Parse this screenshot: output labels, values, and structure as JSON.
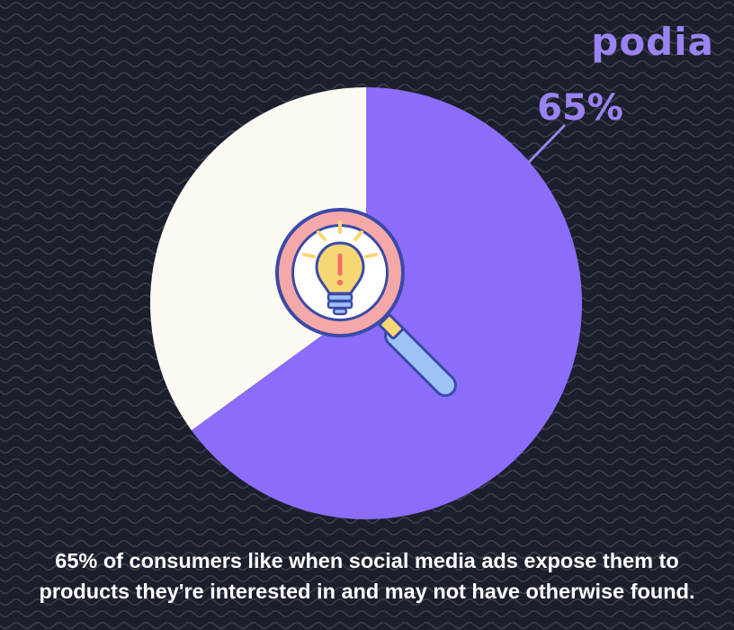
{
  "brand": {
    "logo_text": "podia"
  },
  "colors": {
    "background": "#1b1f2b",
    "wave_line": "#3a3f4e",
    "slice_major": "#8b6cfb",
    "slice_minor": "#fdfaf4",
    "label": "#9a82f0",
    "caption": "#ffffff"
  },
  "icon": {
    "name": "magnifier-lightbulb-icon"
  },
  "chart_data": {
    "type": "pie",
    "slices": [
      {
        "value": 65,
        "label": "65%",
        "color": "#8b6cfb"
      },
      {
        "value": 35,
        "label": "",
        "color": "#fdfaf4"
      }
    ]
  },
  "caption": {
    "line1": "65% of consumers like when social media ads expose them to",
    "line2": "products they're interested in and may not have otherwise found."
  }
}
